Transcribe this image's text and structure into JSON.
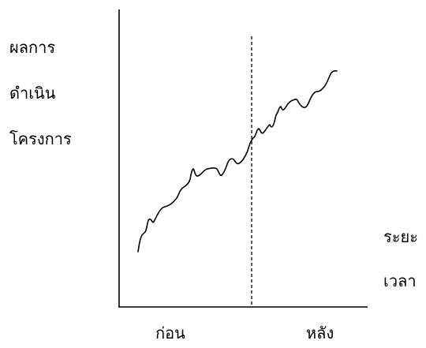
{
  "diagram": {
    "y_axis_label_lines": [
      "ผลการ",
      "ดำเนิน",
      "โครงการ"
    ],
    "x_axis_label_lines": [
      "ระยะ",
      "เวลา"
    ],
    "period_labels": {
      "before": "ก่อน",
      "after": "หลัง"
    }
  },
  "chart_data": {
    "type": "line",
    "title": "",
    "ylabel": "ผลการดำเนินโครงการ",
    "xlabel": "ระยะเวลา",
    "categories": [
      "ก่อน",
      "หลัง"
    ],
    "grid": false,
    "divider": "dashed vertical line between ก่อน and หลัง"
  }
}
